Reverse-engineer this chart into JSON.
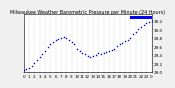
{
  "title": "Milwaukee Weather Barometric Pressure per Minute (24 Hours)",
  "background_color": "#f0f0f0",
  "plot_bg_color": "#ffffff",
  "grid_color": "#aaaaaa",
  "dot_color": "#0000cc",
  "bar_color": "#0000ff",
  "xlim": [
    0,
    1440
  ],
  "ylim": [
    29.0,
    30.35
  ],
  "yticks": [
    29.0,
    29.2,
    29.4,
    29.6,
    29.8,
    30.0,
    30.2
  ],
  "ytick_labels": [
    "29.0",
    "29.2",
    "29.4",
    "29.6",
    "29.8",
    "30.0",
    "30.2"
  ],
  "xtick_positions": [
    0,
    60,
    120,
    180,
    240,
    300,
    360,
    420,
    480,
    540,
    600,
    660,
    720,
    780,
    840,
    900,
    960,
    1020,
    1080,
    1140,
    1200,
    1260,
    1320,
    1380,
    1440
  ],
  "xtick_labels": [
    "0",
    "1",
    "2",
    "3",
    "4",
    "5",
    "6",
    "7",
    "8",
    "9",
    "10",
    "11",
    "12",
    "13",
    "14",
    "15",
    "16",
    "17",
    "18",
    "19",
    "20",
    "21",
    "22",
    "23",
    "0"
  ],
  "data_x": [
    0,
    30,
    60,
    90,
    120,
    150,
    180,
    210,
    240,
    270,
    300,
    330,
    360,
    390,
    420,
    450,
    480,
    510,
    540,
    570,
    600,
    630,
    660,
    690,
    720,
    750,
    780,
    810,
    840,
    870,
    900,
    930,
    960,
    990,
    1020,
    1050,
    1080,
    1110,
    1140,
    1170,
    1200,
    1230,
    1260,
    1290,
    1320,
    1350,
    1380,
    1410,
    1440
  ],
  "data_y": [
    29.05,
    29.08,
    29.1,
    29.15,
    29.2,
    29.28,
    29.35,
    29.42,
    29.5,
    29.58,
    29.65,
    29.7,
    29.75,
    29.78,
    29.8,
    29.82,
    29.8,
    29.75,
    29.7,
    29.65,
    29.55,
    29.5,
    29.45,
    29.42,
    29.38,
    29.35,
    29.38,
    29.4,
    29.45,
    29.42,
    29.45,
    29.48,
    29.5,
    29.52,
    29.55,
    29.6,
    29.65,
    29.68,
    29.72,
    29.75,
    29.8,
    29.9,
    29.95,
    30.0,
    30.05,
    30.1,
    30.15,
    30.18,
    30.2
  ],
  "dot_size": 1.2,
  "fontsize": 3.0,
  "title_fontsize": 3.5
}
